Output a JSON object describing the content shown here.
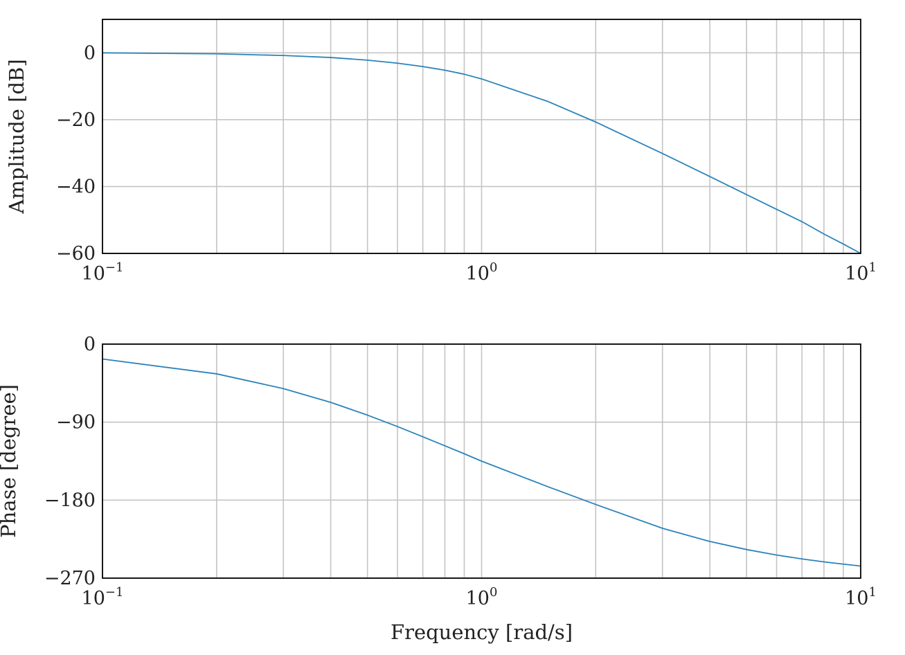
{
  "chart_data": [
    {
      "type": "line",
      "title": "",
      "xlabel": "",
      "ylabel": "Amplitude [dB]",
      "xscale": "log",
      "xlim": [
        0.1,
        10
      ],
      "ylim": [
        -60,
        10
      ],
      "yticks": [
        0,
        -20,
        -40,
        -60
      ],
      "ytick_labels": [
        "0",
        "−20",
        "−40",
        "−60"
      ],
      "xticks": [
        0.1,
        1,
        10
      ],
      "xtick_labels": [
        {
          "base": "10",
          "exp": "−1"
        },
        {
          "base": "10",
          "exp": "0"
        },
        {
          "base": "10",
          "exp": "1"
        }
      ],
      "grid": true,
      "line_color": "#2b83ba",
      "series": [
        {
          "x": [
            0.1,
            0.2,
            0.3,
            0.4,
            0.5,
            0.6,
            0.7,
            0.8,
            0.9,
            1,
            1.5,
            2,
            3,
            4,
            5,
            6,
            7,
            8,
            9,
            10
          ],
          "values": [
            0.0,
            -0.3,
            -0.8,
            -1.4,
            -2.2,
            -3.1,
            -4.1,
            -5.2,
            -6.4,
            -7.8,
            -14.6,
            -20.7,
            -30.1,
            -37.0,
            -42.4,
            -46.8,
            -50.5,
            -54.2,
            -57.2,
            -60.0
          ]
        }
      ]
    },
    {
      "type": "line",
      "title": "",
      "xlabel": "Frequency [rad/s]",
      "ylabel": "Phase [degree]",
      "xscale": "log",
      "xlim": [
        0.1,
        10
      ],
      "ylim": [
        -270,
        0
      ],
      "yticks": [
        0,
        -90,
        -180,
        -270
      ],
      "ytick_labels": [
        "0",
        "−90",
        "−180",
        "−270"
      ],
      "xticks": [
        0.1,
        1,
        10
      ],
      "xtick_labels": [
        {
          "base": "10",
          "exp": "−1"
        },
        {
          "base": "10",
          "exp": "0"
        },
        {
          "base": "10",
          "exp": "1"
        }
      ],
      "grid": true,
      "line_color": "#2b83ba",
      "series": [
        {
          "x": [
            0.1,
            0.2,
            0.3,
            0.4,
            0.5,
            0.6,
            0.7,
            0.8,
            0.9,
            1,
            1.5,
            2,
            3,
            4,
            5,
            6,
            7,
            8,
            9,
            10
          ],
          "values": [
            -17.2,
            -34.3,
            -51.3,
            -67.2,
            -81.9,
            -95.1,
            -106.9,
            -117.3,
            -126.5,
            -135.0,
            -164.7,
            -185.0,
            -212.5,
            -227.7,
            -237.0,
            -243.3,
            -247.8,
            -251.2,
            -253.8,
            -256.0
          ]
        }
      ]
    }
  ]
}
